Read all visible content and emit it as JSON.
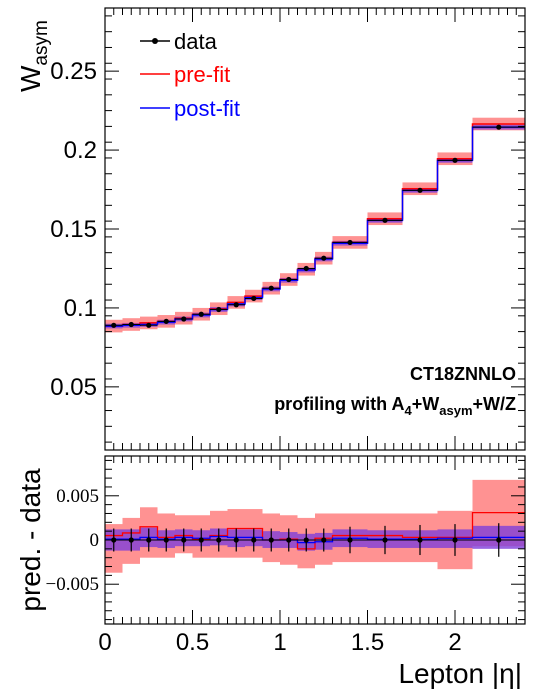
{
  "chart_data": [
    {
      "type": "line",
      "panel": "main",
      "ylabel_main": "W",
      "ylabel_sub": "asym",
      "xlim": [
        0,
        2.4
      ],
      "ylim": [
        0.01,
        0.29
      ],
      "yticks": [
        {
          "v": 0.05,
          "label": "0.05"
        },
        {
          "v": 0.1,
          "label": "0.1"
        },
        {
          "v": 0.15,
          "label": "0.15"
        },
        {
          "v": 0.2,
          "label": "0.2"
        },
        {
          "v": 0.25,
          "label": "0.25"
        }
      ],
      "x_edges": [
        0,
        0.1,
        0.2,
        0.3,
        0.4,
        0.5,
        0.6,
        0.7,
        0.8,
        0.9,
        1.0,
        1.1,
        1.2,
        1.3,
        1.5,
        1.7,
        1.9,
        2.1,
        2.4
      ],
      "legend_position": "top-left",
      "legend": [
        {
          "key": "data",
          "label": "data",
          "color": "#000000"
        },
        {
          "key": "prefit",
          "label": "pre-fit",
          "color": "#ff0000"
        },
        {
          "key": "postfit",
          "label": "post-fit",
          "color": "#0000ff"
        }
      ],
      "series": [
        {
          "name": "data",
          "x": [
            0.05,
            0.15,
            0.25,
            0.35,
            0.45,
            0.55,
            0.65,
            0.75,
            0.85,
            0.95,
            1.05,
            1.15,
            1.25,
            1.4,
            1.6,
            1.8,
            2.0,
            2.25
          ],
          "values": [
            0.089,
            0.0895,
            0.089,
            0.0915,
            0.093,
            0.096,
            0.099,
            0.102,
            0.106,
            0.1125,
            0.118,
            0.125,
            0.1315,
            0.1415,
            0.1555,
            0.1745,
            0.1935,
            0.2145
          ]
        },
        {
          "name": "pre-fit",
          "values": [
            0.0885,
            0.0895,
            0.0905,
            0.0915,
            0.0935,
            0.096,
            0.0995,
            0.1035,
            0.1075,
            0.1125,
            0.118,
            0.1245,
            0.1315,
            0.1415,
            0.1565,
            0.1755,
            0.1945,
            0.2165
          ],
          "band": [
            0.004,
            0.004,
            0.004,
            0.004,
            0.004,
            0.004,
            0.004,
            0.004,
            0.004,
            0.004,
            0.004,
            0.004,
            0.004,
            0.004,
            0.004,
            0.004,
            0.004,
            0.004
          ]
        },
        {
          "name": "post-fit",
          "values": [
            0.0885,
            0.089,
            0.0895,
            0.091,
            0.093,
            0.0955,
            0.099,
            0.1025,
            0.1065,
            0.112,
            0.1175,
            0.124,
            0.131,
            0.141,
            0.1555,
            0.1745,
            0.1935,
            0.2145
          ],
          "band": [
            0.0015,
            0.0015,
            0.0015,
            0.0015,
            0.0015,
            0.0015,
            0.0015,
            0.0015,
            0.0015,
            0.0015,
            0.0015,
            0.0015,
            0.0015,
            0.0015,
            0.0015,
            0.0015,
            0.0015,
            0.0015
          ]
        }
      ]
    },
    {
      "type": "line",
      "panel": "ratio",
      "ylabel": "pred. - data",
      "xlabel": "Lepton |η|",
      "xlim": [
        0,
        2.4
      ],
      "ylim": [
        -0.0095,
        0.0095
      ],
      "yticks": [
        {
          "v": -0.005,
          "label": "−0.005"
        },
        {
          "v": 0,
          "label": "0"
        },
        {
          "v": 0.005,
          "label": "0.005"
        }
      ],
      "xticks": [
        {
          "v": 0,
          "label": "0"
        },
        {
          "v": 0.5,
          "label": "0.5"
        },
        {
          "v": 1,
          "label": "1"
        },
        {
          "v": 1.5,
          "label": "1.5"
        },
        {
          "v": 2,
          "label": "2"
        }
      ],
      "series": [
        {
          "name": "data",
          "x": [
            0.05,
            0.15,
            0.25,
            0.35,
            0.45,
            0.55,
            0.65,
            0.75,
            0.85,
            0.95,
            1.05,
            1.15,
            1.25,
            1.4,
            1.6,
            1.8,
            2.0,
            2.25
          ],
          "values": [
            0,
            0,
            0,
            0,
            0,
            0,
            0,
            0,
            0,
            0,
            0,
            0,
            0,
            0,
            0,
            0,
            0,
            0
          ],
          "errors": [
            0.0013,
            0.0013,
            0.0013,
            0.0013,
            0.0013,
            0.0013,
            0.0013,
            0.0013,
            0.0013,
            0.0013,
            0.0013,
            0.0013,
            0.0013,
            0.0015,
            0.0016,
            0.0017,
            0.0018,
            0.0019
          ]
        },
        {
          "name": "pre-fit",
          "values": [
            0.0005,
            0.0008,
            0.0015,
            0.0003,
            0.0005,
            0.0001,
            0.0005,
            0.0013,
            0.0013,
            0,
            0.0001,
            -0.001,
            0.0002,
            0.0005,
            0.0005,
            0.0003,
            0.0003,
            0.0031
          ],
          "band_low": [
            -0.0037,
            -0.0027,
            -0.002,
            -0.002,
            -0.0015,
            -0.002,
            -0.002,
            -0.002,
            -0.002,
            -0.0025,
            -0.0028,
            -0.0032,
            -0.0028,
            -0.0025,
            -0.0025,
            -0.0025,
            -0.0033,
            -0.0007
          ],
          "band_high": [
            0.0018,
            0.0025,
            0.0037,
            0.003,
            0.0028,
            0.0028,
            0.0033,
            0.0035,
            0.0035,
            0.003,
            0.0028,
            0.0025,
            0.003,
            0.003,
            0.003,
            0.003,
            0.0033,
            0.0068
          ]
        },
        {
          "name": "post-fit",
          "values": [
            0.0001,
            0.0001,
            0.0003,
            0.0001,
            0.0003,
            0.0002,
            0.0004,
            0.0003,
            0.0003,
            0,
            0,
            -0.0003,
            -0.0002,
            0.0002,
            0.0001,
            0.0001,
            0.0002,
            0.0003
          ],
          "band_low": [
            -0.0012,
            -0.0012,
            -0.0008,
            -0.0009,
            -0.0007,
            -0.0007,
            -0.0006,
            -0.0008,
            -0.0007,
            -0.0009,
            -0.0009,
            -0.0012,
            -0.0011,
            -0.0008,
            -0.0009,
            -0.0009,
            -0.0009,
            -0.001
          ],
          "band_high": [
            0.0012,
            0.0012,
            0.0014,
            0.0011,
            0.0012,
            0.0011,
            0.0013,
            0.0012,
            0.0012,
            0.001,
            0.0009,
            0.0007,
            0.0008,
            0.0012,
            0.0011,
            0.0011,
            0.0012,
            0.0016
          ]
        }
      ]
    }
  ],
  "annotation": {
    "line1": "CT18ZNNLO",
    "line2_main": "profiling with A",
    "line2_sub1": "4",
    "line2_mid": "+W",
    "line2_sub2": "asym",
    "line2_end": "+W/Z"
  },
  "colors": {
    "data": "#000000",
    "prefit": "#ff0000",
    "prefit_band": "#ff7f7f",
    "postfit": "#0000ff",
    "postfit_band": "#7f3fd9"
  }
}
